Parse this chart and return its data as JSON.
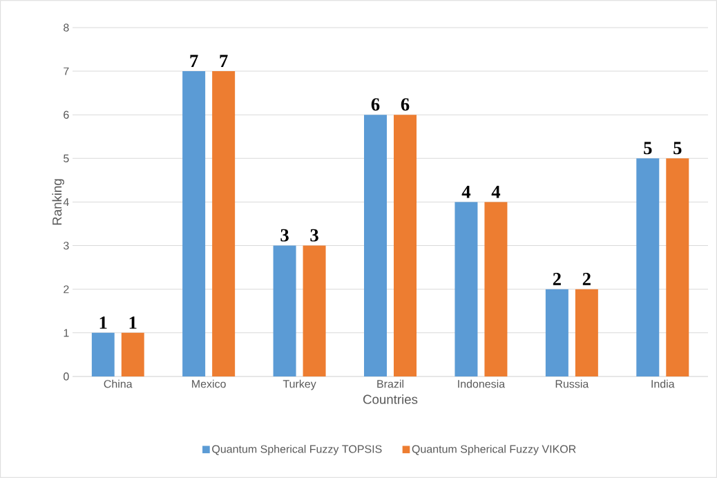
{
  "chart_data": {
    "type": "bar",
    "xlabel": "Countries",
    "ylabel": "Ranking",
    "categories": [
      "China",
      "Mexico",
      "Turkey",
      "Brazil",
      "Indonesia",
      "Russia",
      "India"
    ],
    "series": [
      {
        "name": "Quantum Spherical Fuzzy TOPSIS",
        "color": "#5b9bd5",
        "values": [
          1,
          7,
          3,
          6,
          4,
          2,
          5
        ]
      },
      {
        "name": "Quantum Spherical Fuzzy VIKOR",
        "color": "#ed7d31",
        "values": [
          1,
          7,
          3,
          6,
          4,
          2,
          5
        ]
      }
    ],
    "ylim": [
      0,
      8
    ],
    "yticks": [
      0,
      1,
      2,
      3,
      4,
      5,
      6,
      7,
      8
    ],
    "grid": "y",
    "legend": "bottom",
    "data_labels": true
  }
}
